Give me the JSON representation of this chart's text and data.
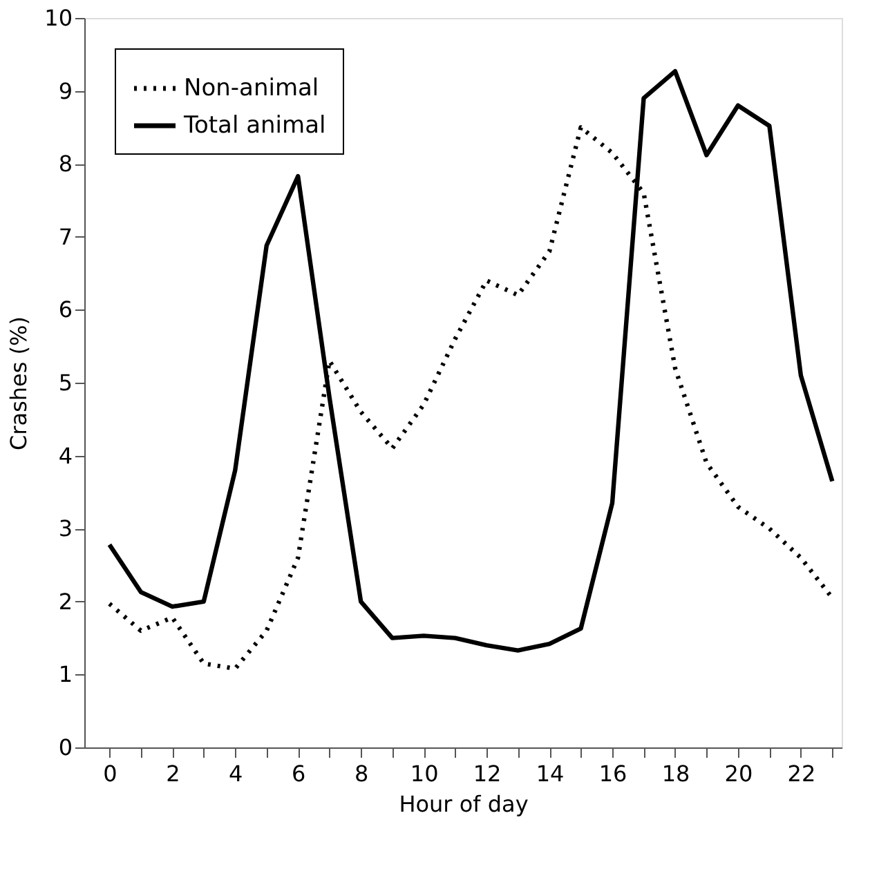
{
  "chart_data": {
    "type": "line",
    "xlabel": "Hour of day",
    "ylabel": "Crashes (%)",
    "x": [
      0,
      1,
      2,
      3,
      4,
      5,
      6,
      7,
      8,
      9,
      10,
      11,
      12,
      13,
      14,
      15,
      16,
      17,
      18,
      19,
      20,
      21,
      22,
      23
    ],
    "series": [
      {
        "name": "Non-animal",
        "color": "#000000",
        "line_style": "dotted",
        "values": [
          1.97,
          1.6,
          1.78,
          1.15,
          1.08,
          1.6,
          2.6,
          5.3,
          4.6,
          4.1,
          4.7,
          5.6,
          6.4,
          6.2,
          6.8,
          8.5,
          8.15,
          7.6,
          5.2,
          3.9,
          3.3,
          3.0,
          2.6,
          2.05
        ]
      },
      {
        "name": "Total animal",
        "color": "#000000",
        "line_style": "solid",
        "values": [
          2.78,
          2.13,
          1.93,
          2.0,
          3.8,
          6.88,
          7.83,
          4.8,
          2.0,
          1.5,
          1.53,
          1.5,
          1.4,
          1.33,
          1.42,
          1.63,
          3.35,
          8.9,
          9.27,
          8.12,
          8.8,
          8.52,
          5.1,
          3.65
        ]
      }
    ],
    "xlim": [
      -0.8,
      23.3
    ],
    "ylim": [
      0,
      10
    ],
    "xticks": [
      0,
      {
        "value": 1,
        "label": null
      },
      2,
      {
        "value": 3,
        "label": null
      },
      4,
      {
        "value": 5,
        "label": null
      },
      6,
      {
        "value": 7,
        "label": null
      },
      8,
      {
        "value": 9,
        "label": null
      },
      10,
      {
        "value": 11,
        "label": null
      },
      12,
      {
        "value": 13,
        "label": null
      },
      14,
      {
        "value": 15,
        "label": null
      },
      16,
      {
        "value": 17,
        "label": null
      },
      18,
      {
        "value": 19,
        "label": null
      },
      20,
      {
        "value": 21,
        "label": null
      },
      22,
      {
        "value": 23,
        "label": null
      }
    ],
    "yticks": [
      0,
      1,
      2,
      3,
      4,
      5,
      6,
      7,
      8,
      9,
      10
    ],
    "grid": false,
    "legend": "top left",
    "marker": "none"
  }
}
